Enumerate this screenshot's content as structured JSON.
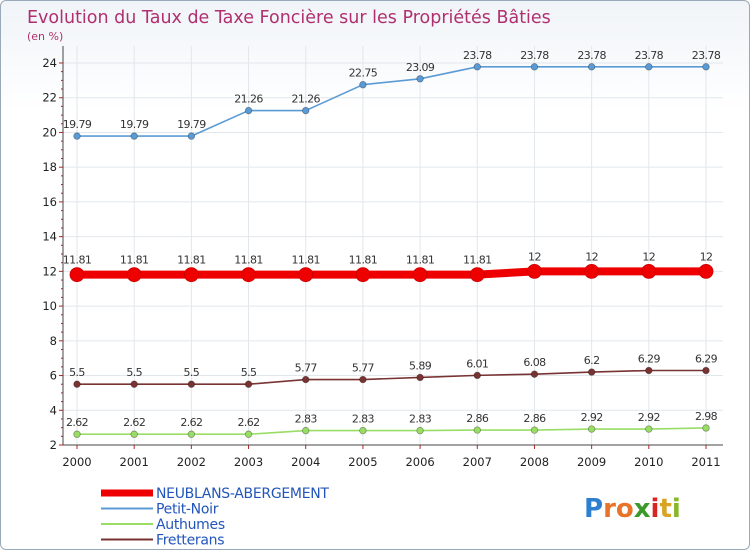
{
  "chart_data": {
    "type": "line",
    "title": "Evolution du Taux de Taxe Foncière sur les Propriétés Bâties",
    "subtitle": "(en %)",
    "xlabel": "",
    "ylabel": "",
    "categories": [
      "2000",
      "2001",
      "2002",
      "2003",
      "2004",
      "2005",
      "2006",
      "2007",
      "2008",
      "2009",
      "2010",
      "2011"
    ],
    "ylim": [
      2,
      24
    ],
    "yticks": [
      "2",
      "4",
      "6",
      "8",
      "10",
      "12",
      "14",
      "16",
      "18",
      "20",
      "22",
      "24"
    ],
    "series": [
      {
        "name": "NEUBLANS-ABERGEMENT",
        "color": "#ee0000",
        "highlight": true,
        "values": [
          11.81,
          11.81,
          11.81,
          11.81,
          11.81,
          11.81,
          11.81,
          11.81,
          12,
          12,
          12,
          12
        ],
        "labels": [
          "11.81",
          "11.81",
          "11.81",
          "11.81",
          "11.81",
          "11.81",
          "11.81",
          "11.81",
          "12",
          "12",
          "12",
          "12"
        ]
      },
      {
        "name": "Petit-Noir",
        "color": "#5b9bd5",
        "highlight": false,
        "values": [
          19.79,
          19.79,
          19.79,
          21.26,
          21.26,
          22.75,
          23.09,
          23.78,
          23.78,
          23.78,
          23.78,
          23.78
        ],
        "labels": [
          "19.79",
          "19.79",
          "19.79",
          "21.26",
          "21.26",
          "22.75",
          "23.09",
          "23.78",
          "23.78",
          "23.78",
          "23.78",
          "23.78"
        ]
      },
      {
        "name": "Authumes",
        "color": "#99dd66",
        "highlight": false,
        "values": [
          2.62,
          2.62,
          2.62,
          2.62,
          2.83,
          2.83,
          2.83,
          2.86,
          2.86,
          2.92,
          2.92,
          2.98
        ],
        "labels": [
          "2.62",
          "2.62",
          "2.62",
          "2.62",
          "2.83",
          "2.83",
          "2.83",
          "2.86",
          "2.86",
          "2.92",
          "2.92",
          "2.98"
        ]
      },
      {
        "name": "Fretterans",
        "color": "#7a3333",
        "highlight": false,
        "values": [
          5.5,
          5.5,
          5.5,
          5.5,
          5.77,
          5.77,
          5.89,
          6.01,
          6.08,
          6.2,
          6.29,
          6.29
        ],
        "labels": [
          "5.5",
          "5.5",
          "5.5",
          "5.5",
          "5.77",
          "5.77",
          "5.89",
          "6.01",
          "6.08",
          "6.2",
          "6.29",
          "6.29"
        ]
      }
    ],
    "legend_position": "bottom-left"
  },
  "brand": {
    "letters": [
      "P",
      "r",
      "o",
      "x",
      "i",
      "t",
      "i"
    ],
    "colors": [
      "#2f7fd1",
      "#e8742a",
      "#e8742a",
      "#3a9a2a",
      "#d92424",
      "#d9a424",
      "#88b82a"
    ]
  }
}
